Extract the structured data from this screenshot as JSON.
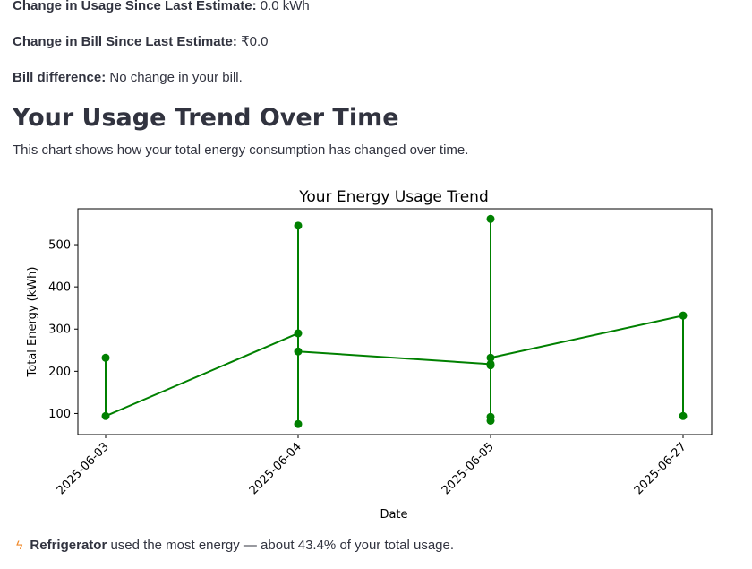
{
  "summary": {
    "usage_label": "Change in Usage Since Last Estimate:",
    "usage_value": "0.0 kWh",
    "bill_label": "Change in Bill Since Last Estimate:",
    "bill_value": "₹0.0",
    "diff_label": "Bill difference:",
    "diff_value": "No change in your bill."
  },
  "trend": {
    "heading": "Your Usage Trend Over Time",
    "description": "This chart shows how your total energy consumption has changed over time."
  },
  "insight": {
    "icon": "lightning-icon",
    "appliance": "Refrigerator",
    "text": "used the most energy — about 43.4% of your total usage."
  },
  "chart_data": {
    "type": "line",
    "title": "Your Energy Usage Trend",
    "xlabel": "Date",
    "ylabel": "Total Energy (kWh)",
    "categories": [
      "2025-06-03",
      "2025-06-04",
      "2025-06-05",
      "2025-06-27"
    ],
    "ylim": [
      50,
      585
    ],
    "yticks": [
      100,
      200,
      300,
      400,
      500
    ],
    "color": "#008000",
    "grid": false,
    "series": [
      {
        "points": [
          {
            "x": "2025-06-03",
            "y": 232
          },
          {
            "x": "2025-06-03",
            "y": 94
          },
          {
            "x": "2025-06-04",
            "y": 290
          },
          {
            "x": "2025-06-04",
            "y": 545
          },
          {
            "x": "2025-06-04",
            "y": 75
          },
          {
            "x": "2025-06-04",
            "y": 247
          },
          {
            "x": "2025-06-05",
            "y": 217
          },
          {
            "x": "2025-06-05",
            "y": 561
          },
          {
            "x": "2025-06-05",
            "y": 83
          },
          {
            "x": "2025-06-05",
            "y": 92
          },
          {
            "x": "2025-06-05",
            "y": 214
          },
          {
            "x": "2025-06-05",
            "y": 232
          },
          {
            "x": "2025-06-27",
            "y": 332
          },
          {
            "x": "2025-06-27",
            "y": 94
          }
        ]
      }
    ]
  }
}
